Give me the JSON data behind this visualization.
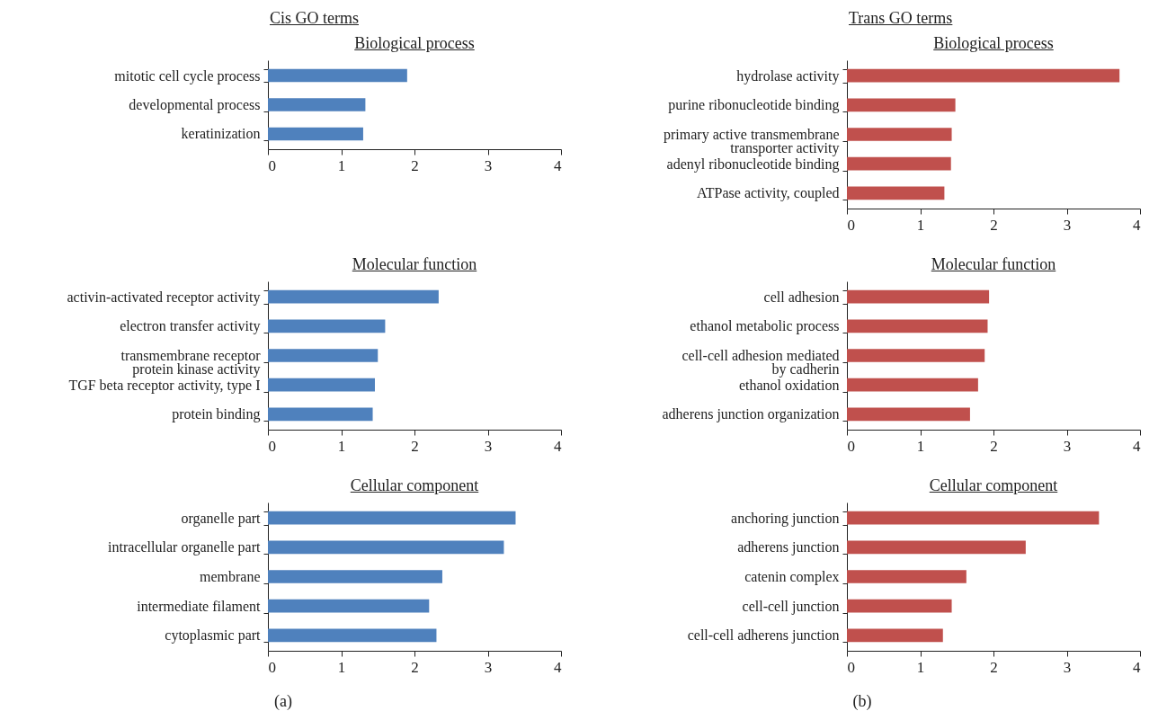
{
  "chart_data": [
    {
      "type": "bar",
      "orientation": "horizontal",
      "title": "Biological process",
      "annotations": [
        "Cis GO terms"
      ],
      "categories": [
        "mitotic cell cycle process",
        "developmental process",
        "keratinization"
      ],
      "values": [
        1.9,
        1.33,
        1.3
      ],
      "color": "#4f81bd",
      "xlim": [
        0,
        4
      ],
      "xticks": [
        0,
        1,
        2,
        3,
        4
      ]
    },
    {
      "type": "bar",
      "orientation": "horizontal",
      "title": "Biological process",
      "annotations": [
        "Trans GO terms"
      ],
      "categories": [
        "hydrolase activity",
        "purine ribonucleotide binding",
        "primary active transmembrane\ntransporter activity",
        "adenyl ribonucleotide binding",
        "ATPase activity, coupled"
      ],
      "values": [
        3.72,
        1.48,
        1.43,
        1.42,
        1.33
      ],
      "color": "#c0504d",
      "xlim": [
        0,
        4
      ],
      "xticks": [
        0,
        1,
        2,
        3,
        4
      ]
    },
    {
      "type": "bar",
      "orientation": "horizontal",
      "title": "Molecular function",
      "categories": [
        "activin-activated receptor activity",
        "electron transfer activity",
        "transmembrane receptor\nprotein kinase activity",
        "TGF beta receptor activity, type I",
        "protein binding"
      ],
      "values": [
        2.33,
        1.6,
        1.5,
        1.46,
        1.43
      ],
      "color": "#4f81bd",
      "xlim": [
        0,
        4
      ],
      "xticks": [
        0,
        1,
        2,
        3,
        4
      ]
    },
    {
      "type": "bar",
      "orientation": "horizontal",
      "title": "Molecular function",
      "categories": [
        "cell adhesion",
        "ethanol metabolic process",
        "cell-cell adhesion mediated\nby cadherin",
        "ethanol oxidation",
        "adherens junction organization"
      ],
      "values": [
        1.94,
        1.92,
        1.88,
        1.79,
        1.68
      ],
      "color": "#c0504d",
      "xlim": [
        0,
        4
      ],
      "xticks": [
        0,
        1,
        2,
        3,
        4
      ]
    },
    {
      "type": "bar",
      "orientation": "horizontal",
      "title": "Cellular component",
      "annotations": [
        "(a)"
      ],
      "categories": [
        "organelle part",
        "intracellular organelle part",
        "membrane",
        "intermediate filament",
        "cytoplasmic part"
      ],
      "values": [
        3.38,
        3.22,
        2.38,
        2.2,
        2.3
      ],
      "color": "#4f81bd",
      "xlim": [
        0,
        4
      ],
      "xticks": [
        0,
        1,
        2,
        3,
        4
      ]
    },
    {
      "type": "bar",
      "orientation": "horizontal",
      "title": "Cellular component",
      "annotations": [
        "(b)"
      ],
      "categories": [
        "anchoring junction",
        "adherens junction",
        "catenin complex",
        "cell-cell junction",
        "cell-cell adherens junction"
      ],
      "values": [
        3.44,
        2.44,
        1.63,
        1.43,
        1.31
      ],
      "color": "#c0504d",
      "xlim": [
        0,
        4
      ],
      "xticks": [
        0,
        1,
        2,
        3,
        4
      ]
    }
  ]
}
